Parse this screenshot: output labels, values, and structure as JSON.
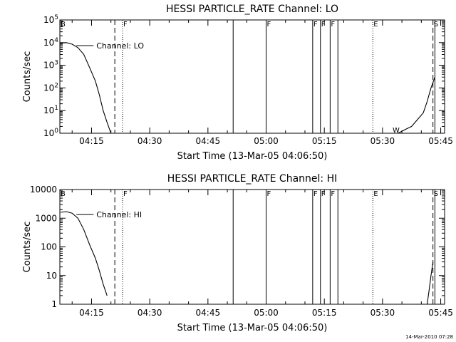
{
  "footer_timestamp": "14-Mar-2010 07:28",
  "chart_data": [
    {
      "type": "line",
      "title": "HESSI PARTICLE_RATE Channel: LO",
      "xlabel": "Start Time (13-Mar-05 04:06:50)",
      "ylabel": "Counts/sec",
      "y_scale": "log",
      "ylim": [
        1,
        100000
      ],
      "xlim": [
        "04:06:50",
        "05:46:00"
      ],
      "x_ticks": [
        "04:15",
        "04:30",
        "04:45",
        "05:00",
        "05:15",
        "05:30",
        "05:45"
      ],
      "y_ticks": [
        {
          "value": 1,
          "base": "10",
          "exp": "0"
        },
        {
          "value": 10,
          "base": "10",
          "exp": "1"
        },
        {
          "value": 100,
          "base": "10",
          "exp": "2"
        },
        {
          "value": 1000,
          "base": "10",
          "exp": "3"
        },
        {
          "value": 10000,
          "base": "10",
          "exp": "4"
        },
        {
          "value": 100000,
          "base": "10",
          "exp": "5"
        }
      ],
      "legend": {
        "label": "Channel: LO",
        "position": "top-left"
      },
      "series": [
        {
          "name": "Channel: LO",
          "segments": [
            [
              [
                "04:07:00",
                9500
              ],
              [
                "04:08:30",
                10000
              ],
              [
                "04:10:00",
                8500
              ],
              [
                "04:11:30",
                6000
              ],
              [
                "04:13:00",
                3000
              ],
              [
                "04:14:30",
                800
              ],
              [
                "04:16:00",
                200
              ],
              [
                "04:17:00",
                50
              ],
              [
                "04:18:00",
                10
              ],
              [
                "04:19:00",
                3
              ],
              [
                "04:20:00",
                1
              ]
            ],
            [
              [
                "05:34:00",
                1
              ],
              [
                "05:36:00",
                1.5
              ],
              [
                "05:37:30",
                2
              ],
              [
                "05:39:00",
                4
              ],
              [
                "05:40:30",
                8
              ],
              [
                "05:41:30",
                25
              ],
              [
                "05:42:30",
                100
              ],
              [
                "05:43:30",
                300
              ]
            ]
          ]
        }
      ],
      "markers": [
        {
          "time": "04:06:50",
          "style": "solid",
          "label": "B"
        },
        {
          "time": "04:21:00",
          "style": "dashed",
          "label": ""
        },
        {
          "time": "04:23:00",
          "style": "dotted",
          "label": "F"
        },
        {
          "time": "04:51:30",
          "style": "solid",
          "label": ""
        },
        {
          "time": "05:00:00",
          "style": "solid",
          "label": "F"
        },
        {
          "time": "05:12:00",
          "style": "solid",
          "label": "F"
        },
        {
          "time": "05:14:00",
          "style": "solid",
          "label": "F"
        },
        {
          "time": "05:16:30",
          "style": "solid",
          "label": "F"
        },
        {
          "time": "05:18:30",
          "style": "solid",
          "label": ""
        },
        {
          "time": "05:27:30",
          "style": "dotted",
          "label": "E"
        },
        {
          "time": "05:33:30",
          "style": "none",
          "label": "W"
        },
        {
          "time": "05:43:00",
          "style": "dashed",
          "label": "S"
        },
        {
          "time": "05:43:30",
          "style": "solid",
          "label": ""
        }
      ]
    },
    {
      "type": "line",
      "title": "HESSI PARTICLE_RATE Channel: HI",
      "xlabel": "Start Time (13-Mar-05 04:06:50)",
      "ylabel": "Counts/sec",
      "y_scale": "log",
      "ylim": [
        1,
        10000
      ],
      "xlim": [
        "04:06:50",
        "05:46:00"
      ],
      "x_ticks": [
        "04:15",
        "04:30",
        "04:45",
        "05:00",
        "05:15",
        "05:30",
        "05:45"
      ],
      "y_ticks": [
        {
          "value": 1,
          "base": "1",
          "exp": ""
        },
        {
          "value": 10,
          "base": "10",
          "exp": ""
        },
        {
          "value": 100,
          "base": "100",
          "exp": ""
        },
        {
          "value": 1000,
          "base": "1000",
          "exp": ""
        },
        {
          "value": 10000,
          "base": "10000",
          "exp": ""
        }
      ],
      "legend": {
        "label": "Channel: HI",
        "position": "top-left"
      },
      "series": [
        {
          "name": "Channel: HI",
          "segments": [
            [
              [
                "04:07:00",
                1600
              ],
              [
                "04:08:30",
                1700
              ],
              [
                "04:10:00",
                1500
              ],
              [
                "04:11:30",
                1000
              ],
              [
                "04:13:00",
                400
              ],
              [
                "04:14:30",
                120
              ],
              [
                "04:16:00",
                40
              ],
              [
                "04:17:00",
                15
              ],
              [
                "04:18:00",
                5
              ],
              [
                "04:19:00",
                2
              ]
            ],
            [
              [
                "05:41:30",
                1
              ],
              [
                "05:42:00",
                3
              ],
              [
                "05:42:30",
                10
              ],
              [
                "05:43:00",
                30
              ]
            ]
          ]
        }
      ],
      "markers": [
        {
          "time": "04:06:50",
          "style": "solid",
          "label": "B"
        },
        {
          "time": "04:21:00",
          "style": "dashed",
          "label": ""
        },
        {
          "time": "04:23:00",
          "style": "dotted",
          "label": "F"
        },
        {
          "time": "04:51:30",
          "style": "solid",
          "label": ""
        },
        {
          "time": "05:00:00",
          "style": "solid",
          "label": "F"
        },
        {
          "time": "05:12:00",
          "style": "solid",
          "label": "F"
        },
        {
          "time": "05:14:00",
          "style": "solid",
          "label": "F"
        },
        {
          "time": "05:16:30",
          "style": "solid",
          "label": "F"
        },
        {
          "time": "05:18:30",
          "style": "solid",
          "label": ""
        },
        {
          "time": "05:27:30",
          "style": "dotted",
          "label": "E"
        },
        {
          "time": "05:43:00",
          "style": "dashed",
          "label": "S"
        },
        {
          "time": "05:43:30",
          "style": "solid",
          "label": ""
        }
      ]
    }
  ]
}
